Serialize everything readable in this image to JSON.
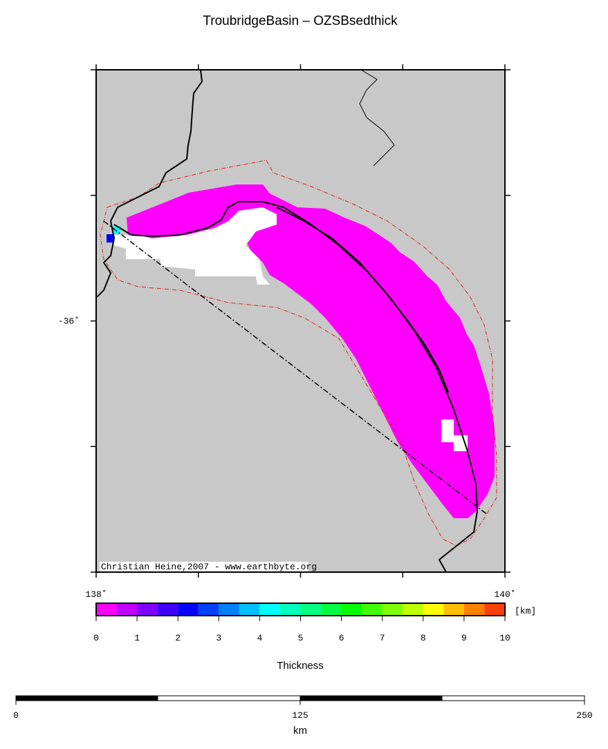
{
  "title": "TroubridgeBasin – OZSBsedthick",
  "map": {
    "lonlim": [
      138,
      140
    ],
    "latlim": [
      -37,
      -35
    ],
    "lon_ticks": [
      138,
      138.5,
      139,
      139.5,
      140
    ],
    "lat_ticks": [
      -35,
      -35.5,
      -36,
      -36.5,
      -37
    ],
    "lon_labels": [
      {
        "value": 138,
        "label": "138˚"
      },
      {
        "value": 140,
        "label": "140˚"
      }
    ],
    "lat_labels": [
      {
        "value": -36,
        "label": "-36˚"
      }
    ],
    "credit": "Christian Heine,2007 - www.earthbyte.org"
  },
  "colorbar": {
    "lim": [
      0,
      10
    ],
    "ticks": [
      0,
      1,
      2,
      3,
      4,
      5,
      6,
      7,
      8,
      9,
      10
    ],
    "unit": "[km]",
    "label": "Thickness",
    "colors": [
      "#ff00ff",
      "#bf00ff",
      "#8000ff",
      "#4000ff",
      "#0000ff",
      "#0040ff",
      "#0080ff",
      "#00bfff",
      "#00ffff",
      "#00ffbf",
      "#00ff80",
      "#00ff40",
      "#00ff00",
      "#40ff00",
      "#80ff00",
      "#bfff00",
      "#ffff00",
      "#ffbf00",
      "#ff8000",
      "#ff4000"
    ]
  },
  "scalebar": {
    "lim": [
      0,
      250
    ],
    "ticks": [
      0,
      125,
      250
    ],
    "unit": "km"
  }
}
